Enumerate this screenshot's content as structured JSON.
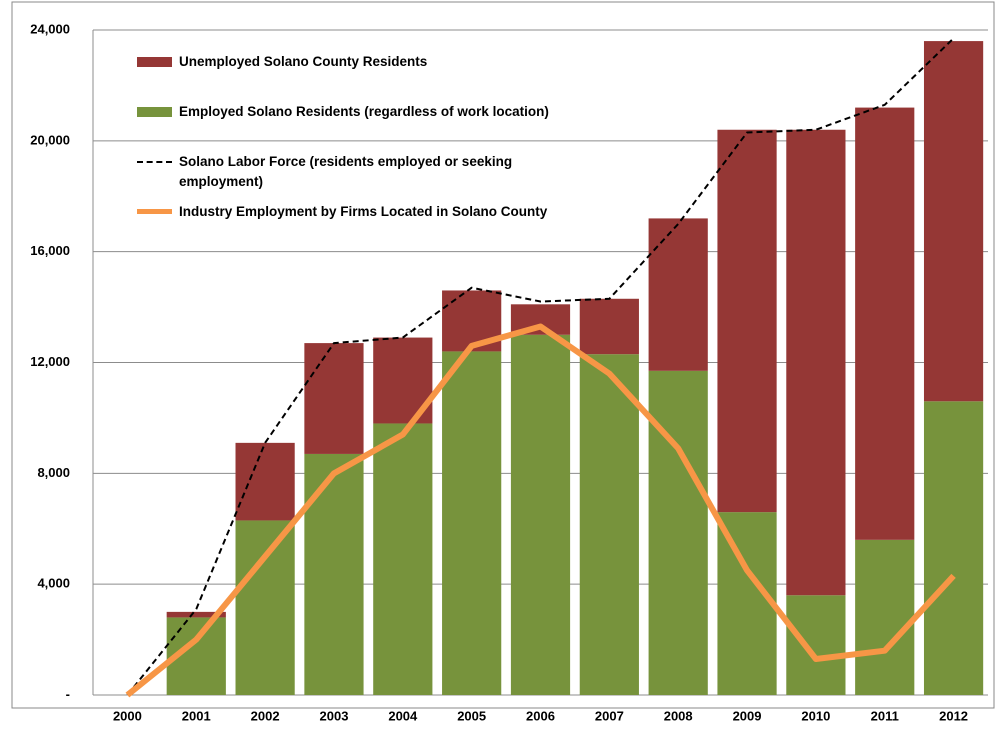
{
  "chart_data": {
    "type": "bar",
    "categories": [
      "2000",
      "2001",
      "2002",
      "2003",
      "2004",
      "2005",
      "2006",
      "2007",
      "2008",
      "2009",
      "2010",
      "2011",
      "2012"
    ],
    "series": [
      {
        "name": "Unemployed Solano County Residents",
        "type": "bar",
        "color": "#953735",
        "values": [
          0,
          200,
          2800,
          4000,
          3100,
          2200,
          1100,
          2000,
          5500,
          13800,
          16800,
          15600,
          13000
        ]
      },
      {
        "name": "Employed Solano Residents (regardless of work location)",
        "type": "bar",
        "color": "#77933c",
        "values": [
          0,
          2800,
          6300,
          8700,
          9800,
          12400,
          13000,
          12300,
          11700,
          6600,
          3600,
          5600,
          10600
        ]
      },
      {
        "name": "Solano Labor Force (residents employed or seeking employment)",
        "type": "line",
        "style": "dashed",
        "color": "#000000",
        "values": [
          0,
          3100,
          9100,
          12700,
          12900,
          14700,
          14200,
          14300,
          17000,
          20300,
          20400,
          21300,
          23700
        ]
      },
      {
        "name": "Industry Employment by Firms Located in Solano County",
        "type": "line",
        "style": "solid",
        "color": "#f79646",
        "values": [
          0,
          2000,
          5000,
          8000,
          9400,
          12600,
          13300,
          11600,
          8900,
          4500,
          1300,
          1600,
          4300
        ]
      }
    ],
    "ylim": [
      0,
      24000
    ],
    "yticks": [
      {
        "value": 0,
        "label": "-"
      },
      {
        "value": 4000,
        "label": "4,000"
      },
      {
        "value": 8000,
        "label": "8,000"
      },
      {
        "value": 12000,
        "label": "12,000"
      },
      {
        "value": 16000,
        "label": "16,000"
      },
      {
        "value": 20000,
        "label": "20,000"
      },
      {
        "value": 24000,
        "label": "24,000"
      }
    ],
    "grid": true
  }
}
